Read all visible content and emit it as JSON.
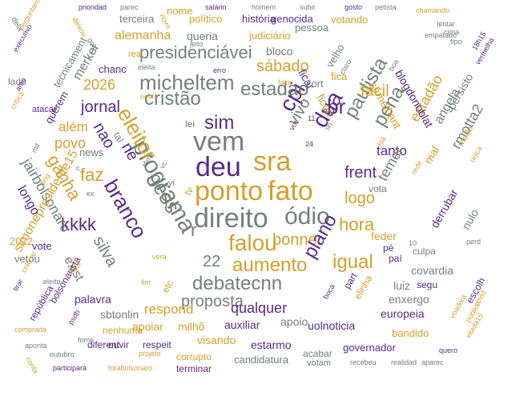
{
  "colors": {
    "purple": "#5b2a86",
    "gold": "#d4a02a",
    "gray": "#74817a",
    "bg": "#ffffff"
  },
  "words": [
    {
      "text": "direito",
      "color": "gray",
      "rot": 0
    },
    {
      "text": "ponto",
      "color": "gold",
      "rot": 0
    },
    {
      "text": "fato",
      "color": "gold",
      "rot": 0
    },
    {
      "text": "vem",
      "color": "gray",
      "rot": 0
    },
    {
      "text": "deu",
      "color": "purple",
      "rot": 0
    },
    {
      "text": "programa",
      "color": "gray",
      "rot": 60
    },
    {
      "text": "eleitor",
      "color": "gold",
      "rot": 60
    },
    {
      "text": "ness",
      "color": "gray",
      "rot": 60
    },
    {
      "text": "branco",
      "color": "purple",
      "rot": 60
    },
    {
      "text": "sra",
      "color": "gold",
      "rot": 0
    },
    {
      "text": "cpi",
      "color": "purple",
      "rot": -60
    },
    {
      "text": "dua",
      "color": "purple",
      "rot": -60
    },
    {
      "text": "paulista",
      "color": "gray",
      "rot": -60
    },
    {
      "text": "pena",
      "color": "gray",
      "rot": -60
    },
    {
      "text": "ódio",
      "color": "gray",
      "rot": 0
    },
    {
      "text": "micheltem",
      "color": "gray",
      "rot": 0
    },
    {
      "text": "presidenciávei",
      "color": "gray",
      "rot": 0
    },
    {
      "text": "estadao",
      "color": "gray",
      "rot": 0
    },
    {
      "text": "cristão",
      "color": "gray",
      "rot": 0
    },
    {
      "text": "falou",
      "color": "gold",
      "rot": 0
    },
    {
      "text": "debatecnn",
      "color": "gray",
      "rot": 0
    },
    {
      "text": "aumento",
      "color": "gold",
      "rot": 0
    },
    {
      "text": "bonner",
      "color": "gold",
      "rot": 0
    },
    {
      "text": "igual",
      "color": "gold",
      "rot": 0
    },
    {
      "text": "hora",
      "color": "gold",
      "rot": 0
    },
    {
      "text": "frent",
      "color": "purple",
      "rot": 0
    },
    {
      "text": "logo",
      "color": "gold",
      "rot": 0
    },
    {
      "text": "plano",
      "color": "purple",
      "rot": -60
    },
    {
      "text": "sábado",
      "color": "gold",
      "rot": 0
    },
    {
      "text": "fácil",
      "color": "gold",
      "rot": 0
    },
    {
      "text": "br",
      "color": "purple",
      "rot": 0
    },
    {
      "text": "sim",
      "color": "purple",
      "rot": 0
    },
    {
      "text": "vivo",
      "color": "gray",
      "rot": -60
    },
    {
      "text": "kkkk",
      "color": "purple",
      "rot": 0
    },
    {
      "text": "faz",
      "color": "gold",
      "rot": 0
    },
    {
      "text": "nao",
      "color": "purple",
      "rot": 60
    },
    {
      "text": "né",
      "color": "purple",
      "rot": 60
    },
    {
      "text": "jornal",
      "color": "purple",
      "rot": 0
    },
    {
      "text": "2026",
      "color": "gold",
      "rot": 0
    },
    {
      "text": "silva",
      "color": "gray",
      "rot": 60
    },
    {
      "text": "22",
      "color": "gray",
      "rot": 0
    },
    {
      "text": "proposta",
      "color": "gray",
      "rot": 0
    },
    {
      "text": "qualquer",
      "color": "purple",
      "rot": 0
    },
    {
      "text": "respond",
      "color": "gold",
      "rot": 0
    },
    {
      "text": "ganha",
      "color": "gold",
      "rot": 60
    },
    {
      "text": "jairbolsonaro",
      "color": "gray",
      "rot": 60
    },
    {
      "text": "povo",
      "color": "gold",
      "rot": 0
    },
    {
      "text": "além",
      "color": "gold",
      "rot": 0
    },
    {
      "text": "alemanha",
      "color": "gold",
      "rot": 0
    },
    {
      "text": "queria",
      "color": "gray",
      "rot": 0
    },
    {
      "text": "bloco",
      "color": "gray",
      "rot": 0
    },
    {
      "text": "merkel",
      "color": "gray",
      "rot": -60
    },
    {
      "text": "tanto",
      "color": "purple",
      "rot": 0
    },
    {
      "text": "rmotta2",
      "color": "gray",
      "rot": -60
    },
    {
      "text": "temer",
      "color": "gray",
      "rot": -60
    },
    {
      "text": "estadão",
      "color": "gold",
      "rot": -60
    },
    {
      "text": "angela",
      "color": "gray",
      "rot": -60
    },
    {
      "text": "simonepresidente15",
      "color": "gold",
      "rot": -60
    },
    {
      "text": "exist",
      "color": "gray",
      "rot": 60
    },
    {
      "text": "longo",
      "color": "purple",
      "rot": 60
    },
    {
      "text": "feder",
      "color": "gold",
      "rot": 0
    },
    {
      "text": "covardia",
      "color": "gray",
      "rot": 0
    },
    {
      "text": "luiz",
      "color": "gray",
      "rot": 0
    },
    {
      "text": "enxergo",
      "color": "gray",
      "rot": 0
    },
    {
      "text": "europeia",
      "color": "purple",
      "rot": 0
    },
    {
      "text": "uolnoticia",
      "color": "purple",
      "rot": 0
    },
    {
      "text": "apoio",
      "color": "gray",
      "rot": 0
    },
    {
      "text": "estarmo",
      "color": "purple",
      "rot": 0
    },
    {
      "text": "visando",
      "color": "gold",
      "rot": 0
    },
    {
      "text": "auxiliar",
      "color": "purple",
      "rot": 0
    },
    {
      "text": "apoiar",
      "color": "gold",
      "rot": 0
    },
    {
      "text": "milhõ",
      "color": "gold",
      "rot": 0
    },
    {
      "text": "sbtonlin",
      "color": "gray",
      "rot": 0
    },
    {
      "text": "palavra",
      "color": "purple",
      "rot": 0
    },
    {
      "text": "governador",
      "color": "purple",
      "rot": 0
    },
    {
      "text": "candidatura",
      "color": "gray",
      "rot": 0
    },
    {
      "text": "bandido",
      "color": "gold",
      "rot": 0
    },
    {
      "text": "2022",
      "color": "gold",
      "rot": 0
    },
    {
      "text": "vetou",
      "color": "gray",
      "rot": 0
    },
    {
      "text": "vote",
      "color": "purple",
      "rot": 0
    },
    {
      "text": "derrubar",
      "color": "purple",
      "rot": -60
    },
    {
      "text": "nulo",
      "color": "gray",
      "rot": -60
    },
    {
      "text": "persisto",
      "color": "gray",
      "rot": -60
    },
    {
      "text": "mal",
      "color": "gold",
      "rot": -60
    },
    {
      "text": "blogdonoblat",
      "color": "purple",
      "rot": 60
    },
    {
      "text": "semelhant",
      "color": "gold",
      "rot": 60
    },
    {
      "text": "ficou",
      "color": "gold",
      "rot": 60
    },
    {
      "text": "ficar",
      "color": "purple",
      "rot": 60
    },
    {
      "text": "fica",
      "color": "gold",
      "rot": 0
    },
    {
      "text": "cort",
      "color": "gray",
      "rot": 0
    },
    {
      "text": "velho",
      "color": "gray",
      "rot": -60
    },
    {
      "text": "história",
      "color": "purple",
      "rot": 0
    },
    {
      "text": "genocida",
      "color": "purple",
      "rot": 0
    },
    {
      "text": "pessoa",
      "color": "gray",
      "rot": 0
    },
    {
      "text": "votando",
      "color": "gold",
      "rot": 0
    },
    {
      "text": "político",
      "color": "gold",
      "rot": 0
    },
    {
      "text": "judiciário",
      "color": "gold",
      "rot": 0
    },
    {
      "text": "nome",
      "color": "gold",
      "rot": 0
    },
    {
      "text": "terceira",
      "color": "gray",
      "rot": 0
    },
    {
      "text": "reai",
      "color": "gold",
      "rot": 0
    },
    {
      "text": "chanc",
      "color": "purple",
      "rot": 0
    },
    {
      "text": "tecnicament",
      "color": "gray",
      "rot": -60
    },
    {
      "text": "querem",
      "color": "purple",
      "rot": -60
    },
    {
      "text": "atacar",
      "color": "purple",
      "rot": 0
    },
    {
      "text": "lado",
      "color": "gray",
      "rot": 0
    },
    {
      "text": "news",
      "color": "gray",
      "rot": 0
    },
    {
      "text": "lei",
      "color": "gray",
      "rot": 0
    },
    {
      "text": "tal",
      "color": "gray",
      "rot": 60
    },
    {
      "text": "vota",
      "color": "gray",
      "rot": 0
    },
    {
      "text": "pé",
      "color": "purple",
      "rot": 0
    },
    {
      "text": "paí",
      "color": "purple",
      "rot": 0
    },
    {
      "text": "culpa",
      "color": "gray",
      "rot": 0
    },
    {
      "text": "part",
      "color": "purple",
      "rot": -60
    },
    {
      "text": "elinha",
      "color": "gold",
      "rot": -60
    },
    {
      "text": "segu",
      "color": "purple",
      "rot": 0
    },
    {
      "text": "escolh",
      "color": "purple",
      "rot": -60
    },
    {
      "text": "bolsonarista",
      "color": "purple",
      "rot": -60
    },
    {
      "text": "república",
      "color": "purple",
      "rot": -60
    },
    {
      "text": "eleito",
      "color": "gray",
      "rot": 0
    },
    {
      "text": "nenhuma",
      "color": "gold",
      "rot": 0
    },
    {
      "text": "diferent",
      "color": "purple",
      "rot": 0
    },
    {
      "text": "ouvir",
      "color": "purple",
      "rot": 0
    },
    {
      "text": "respeit",
      "color": "purple",
      "rot": 0
    },
    {
      "text": "corrupto",
      "color": "gold",
      "rot": 0
    },
    {
      "text": "terminar",
      "color": "purple",
      "rot": 0
    },
    {
      "text": "acabar",
      "color": "gray",
      "rot": 0
    },
    {
      "text": "votam",
      "color": "gray",
      "rot": 0
    },
    {
      "text": "recebeu",
      "color": "gray",
      "rot": 0
    },
    {
      "text": "realidad",
      "color": "gray",
      "rot": 0
    },
    {
      "text": "aparec",
      "color": "gray",
      "rot": 0
    },
    {
      "text": "quero",
      "color": "purple",
      "rot": 0
    },
    {
      "text": "participará",
      "color": "purple",
      "rot": 0
    },
    {
      "text": "forabolsonaro",
      "color": "gold",
      "rot": 0
    },
    {
      "text": "outubro",
      "color": "gray",
      "rot": 0
    },
    {
      "text": "aponta",
      "color": "gray",
      "rot": 0
    },
    {
      "text": "comprada",
      "color": "gold",
      "rot": 0
    },
    {
      "text": "conta",
      "color": "gold",
      "rot": 60
    },
    {
      "text": "etc",
      "color": "gold",
      "rot": -60
    },
    {
      "text": "boca",
      "color": "purple",
      "rot": -60
    },
    {
      "text": "prioridad",
      "color": "purple",
      "rot": 0
    },
    {
      "text": "parec",
      "color": "gray",
      "rot": 0
    },
    {
      "text": "salário",
      "color": "purple",
      "rot": 0
    },
    {
      "text": "homem",
      "color": "gray",
      "rot": 0
    },
    {
      "text": "subir",
      "color": "gray",
      "rot": 0
    },
    {
      "text": "gosto",
      "color": "purple",
      "rot": 0
    },
    {
      "text": "petista",
      "color": "gray",
      "rot": 0
    },
    {
      "text": "chamando",
      "color": "gold",
      "rot": 0
    },
    {
      "text": "tentar",
      "color": "gray",
      "rot": 0
    },
    {
      "text": "cima",
      "color": "gray",
      "rot": 0
    },
    {
      "text": "tipo",
      "color": "gray",
      "rot": 0
    },
    {
      "text": "18h15",
      "color": "purple",
      "rot": -60
    },
    {
      "text": "vermelha",
      "color": "purple",
      "rot": -60
    },
    {
      "text": "medo",
      "color": "gold",
      "rot": -60
    },
    {
      "text": "única",
      "color": "gold",
      "rot": -60
    },
    {
      "text": "covid",
      "color": "gold",
      "rot": -60
    },
    {
      "text": "público",
      "color": "gold",
      "rot": -60
    },
    {
      "text": "vitada15",
      "color": "gold",
      "rot": -60
    },
    {
      "text": "voadora",
      "color": "gold",
      "rot": -60
    },
    {
      "text": "rede",
      "color": "gold",
      "rot": -60
    },
    {
      "text": "perd",
      "color": "gray",
      "rot": 0
    },
    {
      "text": "empatado",
      "color": "gray",
      "rot": 0
    },
    {
      "text": "boa",
      "color": "gray",
      "rot": -60
    },
    {
      "text": "claro",
      "color": "gray",
      "rot": -60
    },
    {
      "text": "jeito",
      "color": "gray",
      "rot": 0
    },
    {
      "text": "erro",
      "color": "purple",
      "rot": 0
    },
    {
      "text": "fake",
      "color": "gold",
      "rot": 0
    },
    {
      "text": "eleita",
      "color": "gray",
      "rot": 0
    },
    {
      "text": "nest",
      "color": "gold",
      "rot": 0
    },
    {
      "text": "novo",
      "color": "gold",
      "rot": 60
    },
    {
      "text": "deixou",
      "color": "gold",
      "rot": 60
    },
    {
      "text": "golp",
      "color": "gray",
      "rot": 60
    },
    {
      "text": "executivo",
      "color": "purple",
      "rot": -60
    },
    {
      "text": "perguntando",
      "color": "gold",
      "rot": -60
    },
    {
      "text": "crítica",
      "color": "gold",
      "rot": -60
    },
    {
      "text": "amo",
      "color": "purple",
      "rot": -60
    },
    {
      "text": "mil",
      "color": "gray",
      "rot": -60
    },
    {
      "text": "ding",
      "color": "gold",
      "rot": -60
    },
    {
      "text": "colocar",
      "color": "gold",
      "rot": -60
    },
    {
      "text": "tirar",
      "color": "purple",
      "rot": -60
    },
    {
      "text": "elegi",
      "color": "gold",
      "rot": -60
    },
    {
      "text": "psdb",
      "color": "purple",
      "rot": -60
    },
    {
      "text": "fome",
      "color": "gray",
      "rot": 0
    },
    {
      "text": "projeto",
      "color": "gold",
      "rot": 0
    },
    {
      "text": "vera",
      "color": "gold",
      "rot": 0
    },
    {
      "text": "fim",
      "color": "gold",
      "rot": 0
    },
    {
      "text": "10",
      "color": "gray",
      "rot": 0
    },
    {
      "text": "11",
      "color": "purple",
      "rot": 0
    },
    {
      "text": "24",
      "color": "purple",
      "rot": 0
    },
    {
      "text": "vc",
      "color": "gray",
      "rot": -60
    },
    {
      "text": "ex",
      "color": "gray",
      "rot": 0
    },
    {
      "text": "vi",
      "color": "gray",
      "rot": 0
    },
    {
      "text": "tv",
      "color": "gold",
      "rot": -60
    },
    {
      "text": "r",
      "color": "gray",
      "rot": 0
    },
    {
      "text": "c",
      "color": "gray",
      "rot": 0
    },
    {
      "text": "tô",
      "color": "gray",
      "rot": 0
    },
    {
      "text": "vor",
      "color": "purple",
      "rot": -60
    },
    {
      "text": "só",
      "color": "gray",
      "rot": -60
    },
    {
      "text": "blá",
      "color": "gold",
      "rot": -60
    },
    {
      "text": "têm",
      "color": "gray",
      "rot": -60
    },
    {
      "text": "dela",
      "color": "gray",
      "rot": 60
    }
  ]
}
